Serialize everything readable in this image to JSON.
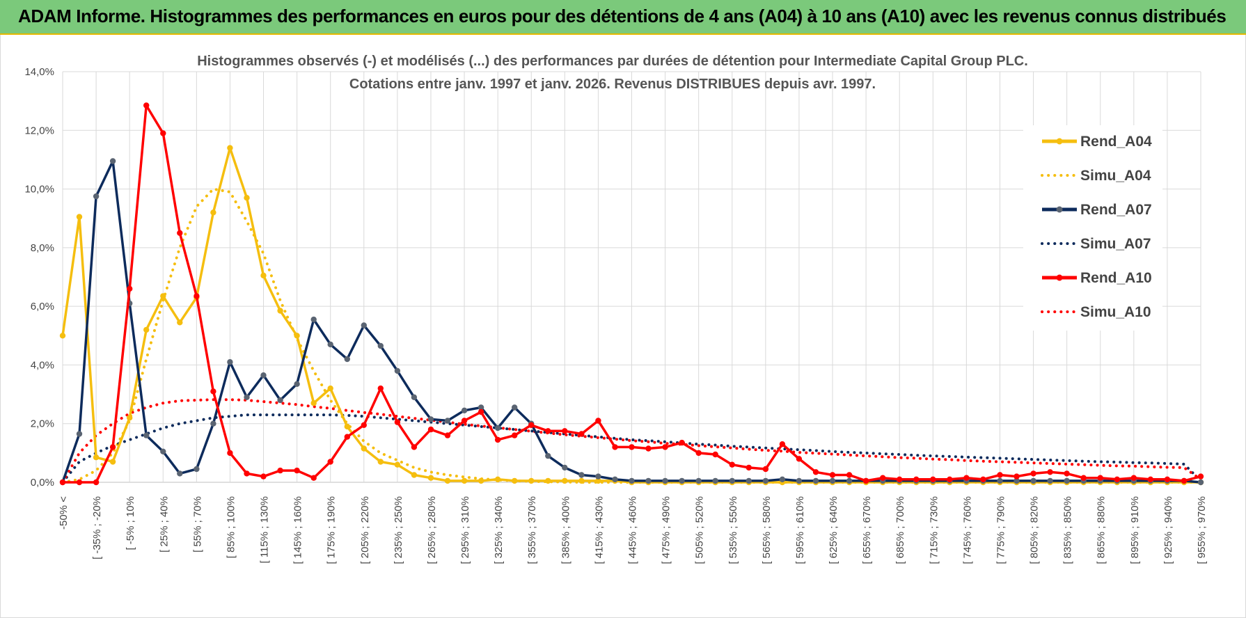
{
  "banner": {
    "title": "ADAM Informe. Histogrammes des performances en euros pour des détentions de 4 ans (A04) à 10 ans (A10) avec les revenus connus distribués"
  },
  "chart_data": {
    "type": "line",
    "title": "Histogrammes observés (-) et modélisés (...) des performances par durées de détention pour Intermediate Capital Group PLC.",
    "subtitle": "Cotations entre janv. 1997 et janv. 2026. Revenus DISTRIBUES depuis avr. 1997.",
    "xlabel": "",
    "ylabel": "",
    "ylim": [
      0,
      14
    ],
    "y_ticks": [
      "0,0%",
      "2,0%",
      "4,0%",
      "6,0%",
      "8,0%",
      "10,0%",
      "12,0%",
      "14,0%"
    ],
    "grid": true,
    "legend_position": "right",
    "x_tick_labels": [
      "-50% <",
      "[ -35% ; -20%",
      "[ -5% ; 10%",
      "[ 25% ; 40%",
      "[ 55% ; 70%",
      "[ 85% ; 100%",
      "[ 115% ; 130%",
      "[ 145% ; 160%",
      "[ 175% ; 190%",
      "[ 205% ; 220%",
      "[ 235% ; 250%",
      "[ 265% ; 280%",
      "[ 295% ; 310%",
      "[ 325% ; 340%",
      "[ 355% ; 370%",
      "[ 385% ; 400%",
      "[ 415% ; 430%",
      "[ 445% ; 460%",
      "[ 475% ; 490%",
      "[ 505% ; 520%",
      "[ 535% ; 550%",
      "[ 565% ; 580%",
      "[ 595% ; 610%",
      "[ 625% ; 640%",
      "[ 655% ; 670%",
      "[ 685% ; 700%",
      "[ 715% ; 730%",
      "[ 745% ; 760%",
      "[ 775% ; 790%",
      "[ 805% ; 820%",
      "[ 835% ; 850%",
      "[ 865% ; 880%",
      "[ 895% ; 910%",
      "[ 925% ; 940%",
      "[ 955% ; 970%"
    ],
    "n_categories": 69,
    "series": [
      {
        "name": "Rend_A04",
        "style": "solid",
        "color": "#f5be0f",
        "values": [
          5.0,
          9.05,
          0.85,
          0.7,
          2.2,
          5.2,
          6.35,
          5.45,
          6.3,
          9.2,
          11.4,
          9.7,
          7.05,
          5.85,
          5.0,
          2.7,
          3.2,
          1.9,
          1.15,
          0.7,
          0.6,
          0.25,
          0.15,
          0.05,
          0.05,
          0.05,
          0.1,
          0.05,
          0.05,
          0.05,
          0.05,
          0.05,
          0.05,
          0.05,
          0.0,
          0.0,
          0.0,
          0.0,
          0.0,
          0.0,
          0.0,
          0.0,
          0.0,
          0.0,
          0.0,
          0.0,
          0.0,
          0.0,
          0.0,
          0.0,
          0.0,
          0.0,
          0.0,
          0.0,
          0.0,
          0.0,
          0.0,
          0.0,
          0.0,
          0.0,
          0.0,
          0.0,
          0.0,
          0.0,
          0.0,
          0.0,
          0.0,
          0.0,
          0.0
        ]
      },
      {
        "name": "Simu_A04",
        "style": "dotted",
        "color": "#f5be0f",
        "values": [
          0.0,
          0.1,
          0.4,
          1.0,
          2.1,
          4.2,
          6.2,
          8.0,
          9.4,
          10.0,
          9.9,
          8.9,
          7.8,
          6.2,
          4.9,
          3.8,
          2.8,
          2.0,
          1.4,
          1.0,
          0.75,
          0.5,
          0.35,
          0.25,
          0.18,
          0.12,
          0.08,
          0.05,
          0.03,
          0.02,
          0.01,
          0.0,
          0.0,
          0.0,
          0.0,
          0.0,
          0.0,
          0.0,
          0.0,
          0.0,
          0.0,
          0.0,
          0.0,
          0.0,
          0.0,
          0.0,
          0.0,
          0.0,
          0.0,
          0.0,
          0.0,
          0.0,
          0.0,
          0.0,
          0.0,
          0.0,
          0.0,
          0.0,
          0.0,
          0.0,
          0.0,
          0.0,
          0.0,
          0.0,
          0.0,
          0.0,
          0.0,
          0.0,
          0.0
        ]
      },
      {
        "name": "Rend_A07",
        "style": "solid",
        "color": "#0d2b5c",
        "values": [
          0.0,
          1.65,
          9.75,
          10.95,
          6.1,
          1.6,
          1.05,
          0.3,
          0.45,
          2.0,
          4.1,
          2.9,
          3.65,
          2.8,
          3.35,
          5.55,
          4.7,
          4.2,
          5.35,
          4.65,
          3.8,
          2.9,
          2.15,
          2.1,
          2.45,
          2.55,
          1.85,
          2.55,
          2.0,
          0.9,
          0.5,
          0.25,
          0.2,
          0.1,
          0.05,
          0.05,
          0.05,
          0.05,
          0.05,
          0.05,
          0.05,
          0.05,
          0.05,
          0.1,
          0.05,
          0.05,
          0.05,
          0.05,
          0.05,
          0.05,
          0.05,
          0.05,
          0.05,
          0.05,
          0.05,
          0.05,
          0.05,
          0.05,
          0.05,
          0.05,
          0.05,
          0.05,
          0.05,
          0.05,
          0.05,
          0.05,
          0.05,
          0.05,
          0.0
        ]
      },
      {
        "name": "Simu_A07",
        "style": "dotted",
        "color": "#0d2b5c",
        "values": [
          0.0,
          0.7,
          1.0,
          1.25,
          1.45,
          1.65,
          1.85,
          2.0,
          2.1,
          2.2,
          2.25,
          2.3,
          2.3,
          2.3,
          2.3,
          2.3,
          2.3,
          2.28,
          2.25,
          2.2,
          2.15,
          2.1,
          2.05,
          2.0,
          1.95,
          1.9,
          1.85,
          1.8,
          1.75,
          1.7,
          1.65,
          1.6,
          1.55,
          1.5,
          1.45,
          1.42,
          1.38,
          1.34,
          1.3,
          1.27,
          1.23,
          1.2,
          1.17,
          1.14,
          1.11,
          1.08,
          1.05,
          1.02,
          1.0,
          0.97,
          0.95,
          0.92,
          0.9,
          0.88,
          0.86,
          0.84,
          0.82,
          0.8,
          0.78,
          0.76,
          0.74,
          0.72,
          0.7,
          0.69,
          0.67,
          0.66,
          0.64,
          0.62,
          0.05
        ]
      },
      {
        "name": "Rend_A10",
        "style": "solid",
        "color": "#ff0000",
        "values": [
          0.0,
          0.0,
          0.0,
          1.2,
          6.6,
          12.85,
          11.9,
          8.5,
          6.35,
          3.1,
          1.0,
          0.3,
          0.2,
          0.4,
          0.4,
          0.15,
          0.7,
          1.55,
          1.95,
          3.2,
          2.05,
          1.2,
          1.8,
          1.6,
          2.1,
          2.4,
          1.45,
          1.6,
          1.95,
          1.75,
          1.75,
          1.65,
          2.1,
          1.2,
          1.2,
          1.15,
          1.2,
          1.35,
          1.0,
          0.95,
          0.6,
          0.5,
          0.45,
          1.3,
          0.8,
          0.35,
          0.25,
          0.25,
          0.05,
          0.15,
          0.1,
          0.1,
          0.1,
          0.1,
          0.15,
          0.1,
          0.25,
          0.2,
          0.3,
          0.35,
          0.3,
          0.15,
          0.15,
          0.1,
          0.15,
          0.1,
          0.1,
          0.05,
          0.2
        ]
      },
      {
        "name": "Simu_A10",
        "style": "dotted",
        "color": "#ff0000",
        "values": [
          0.0,
          1.0,
          1.6,
          2.0,
          2.35,
          2.55,
          2.7,
          2.78,
          2.8,
          2.82,
          2.82,
          2.8,
          2.75,
          2.7,
          2.65,
          2.58,
          2.52,
          2.45,
          2.38,
          2.32,
          2.25,
          2.18,
          2.12,
          2.05,
          1.98,
          1.92,
          1.86,
          1.8,
          1.74,
          1.68,
          1.62,
          1.57,
          1.52,
          1.47,
          1.42,
          1.38,
          1.33,
          1.29,
          1.25,
          1.21,
          1.17,
          1.13,
          1.09,
          1.06,
          1.02,
          0.99,
          0.96,
          0.93,
          0.9,
          0.87,
          0.84,
          0.82,
          0.79,
          0.77,
          0.74,
          0.72,
          0.7,
          0.68,
          0.66,
          0.64,
          0.62,
          0.6,
          0.58,
          0.56,
          0.55,
          0.53,
          0.51,
          0.5,
          0.1
        ]
      }
    ]
  }
}
